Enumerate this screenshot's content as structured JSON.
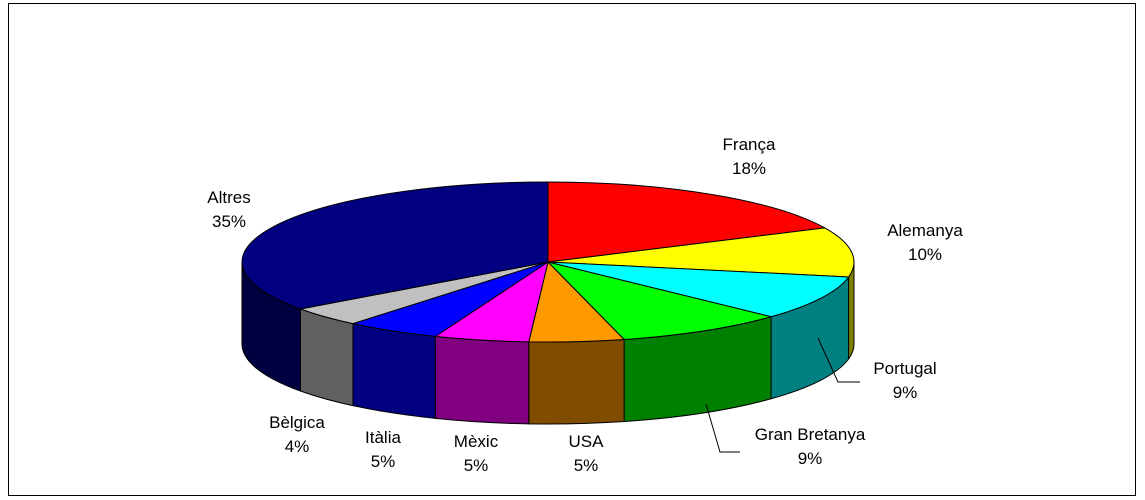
{
  "chart_data": {
    "type": "pie",
    "style": "3d-exploded-perspective",
    "title": "",
    "slices": [
      {
        "label": "França",
        "pct_label": "18%",
        "value": 18,
        "top_color": "#ff0000",
        "side_color": "#800000"
      },
      {
        "label": "Alemanya",
        "pct_label": "10%",
        "value": 10,
        "top_color": "#ffff00",
        "side_color": "#808000"
      },
      {
        "label": "Portugal",
        "pct_label": "9%",
        "value": 9,
        "top_color": "#00ffff",
        "side_color": "#008080"
      },
      {
        "label": "Gran Bretanya",
        "pct_label": "9%",
        "value": 9,
        "top_color": "#00ff00",
        "side_color": "#008000"
      },
      {
        "label": "USA",
        "pct_label": "5%",
        "value": 5,
        "top_color": "#ff9900",
        "side_color": "#804c00"
      },
      {
        "label": "Mèxic",
        "pct_label": "5%",
        "value": 5,
        "top_color": "#ff00ff",
        "side_color": "#800080"
      },
      {
        "label": "Itàlia",
        "pct_label": "5%",
        "value": 5,
        "top_color": "#0000ff",
        "side_color": "#000080"
      },
      {
        "label": "Bèlgica",
        "pct_label": "4%",
        "value": 4,
        "top_color": "#c0c0c0",
        "side_color": "#606060"
      },
      {
        "label": "Altres",
        "pct_label": "35%",
        "value": 35,
        "top_color": "#000080",
        "side_color": "#000040"
      }
    ],
    "legend": "none"
  }
}
